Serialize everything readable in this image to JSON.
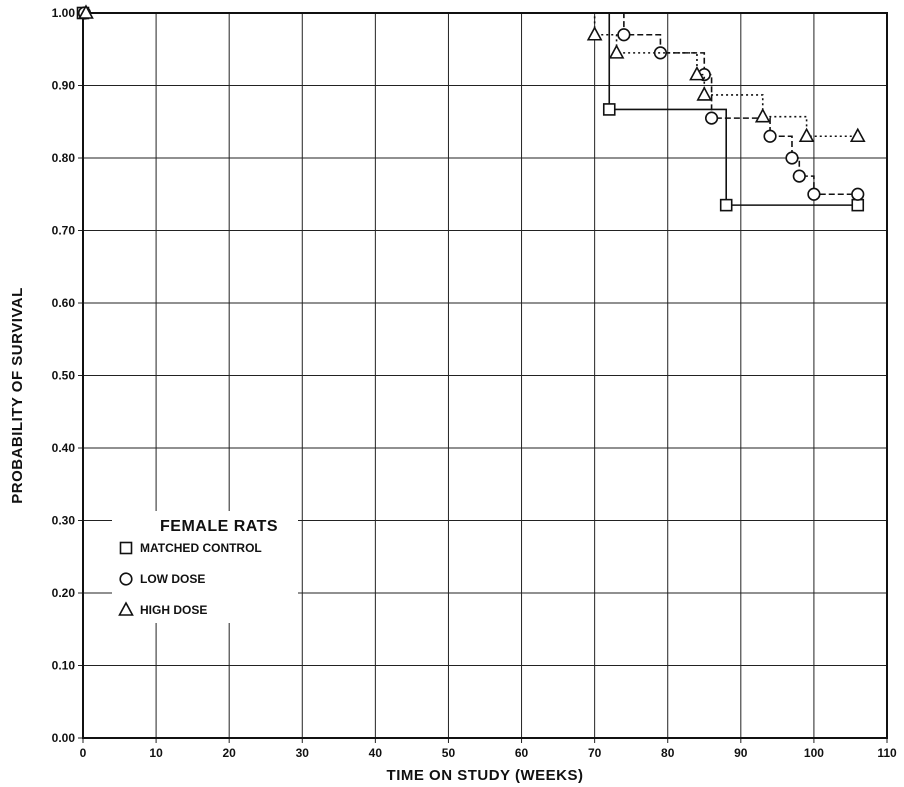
{
  "chart_data": {
    "type": "line",
    "subtype": "step (Kaplan-Meier survival)",
    "title": "",
    "xlabel": "TIME ON STUDY (WEEKS)",
    "ylabel": "PROBABILITY OF SURVIVAL",
    "xlim": [
      0,
      110
    ],
    "ylim": [
      0,
      1.0
    ],
    "x_ticks": [
      "0",
      "10",
      "20",
      "30",
      "40",
      "50",
      "60",
      "70",
      "80",
      "90",
      "100",
      "110"
    ],
    "y_ticks": [
      "0.00",
      "0.10",
      "0.20",
      "0.30",
      "0.40",
      "0.50",
      "0.60",
      "0.70",
      "0.80",
      "0.90",
      "1.00"
    ],
    "grid": true,
    "legend": {
      "title": "FEMALE RATS",
      "placement": "lower-left",
      "entries": [
        {
          "label": "MATCHED CONTROL",
          "marker": "square"
        },
        {
          "label": "LOW DOSE",
          "marker": "circle"
        },
        {
          "label": "HIGH DOSE",
          "marker": "triangle"
        }
      ]
    },
    "series": [
      {
        "name": "MATCHED CONTROL",
        "marker": "square",
        "line_style": "solid",
        "steps": [
          [
            0,
            1.0
          ],
          [
            72,
            0.867
          ],
          [
            88,
            0.735
          ],
          [
            106,
            0.735
          ]
        ],
        "markers": [
          [
            72,
            0.867
          ],
          [
            88,
            0.735
          ],
          [
            106,
            0.735
          ]
        ]
      },
      {
        "name": "LOW DOSE",
        "marker": "circle",
        "line_style": "dashed",
        "steps": [
          [
            0,
            1.0
          ],
          [
            74,
            0.97
          ],
          [
            79,
            0.945
          ],
          [
            85,
            0.915
          ],
          [
            86,
            0.855
          ],
          [
            94,
            0.83
          ],
          [
            97,
            0.8
          ],
          [
            98,
            0.775
          ],
          [
            100,
            0.75
          ],
          [
            106,
            0.75
          ]
        ],
        "markers": [
          [
            74,
            0.97
          ],
          [
            79,
            0.945
          ],
          [
            85,
            0.915
          ],
          [
            86,
            0.855
          ],
          [
            94,
            0.83
          ],
          [
            97,
            0.8
          ],
          [
            98,
            0.775
          ],
          [
            100,
            0.75
          ],
          [
            106,
            0.75
          ]
        ]
      },
      {
        "name": "HIGH DOSE",
        "marker": "triangle",
        "line_style": "dotted",
        "steps": [
          [
            0,
            1.0
          ],
          [
            70,
            0.97
          ],
          [
            73,
            0.945
          ],
          [
            84,
            0.915
          ],
          [
            85,
            0.887
          ],
          [
            93,
            0.857
          ],
          [
            99,
            0.83
          ],
          [
            106,
            0.83
          ]
        ],
        "markers": [
          [
            70,
            0.97
          ],
          [
            73,
            0.945
          ],
          [
            84,
            0.915
          ],
          [
            85,
            0.887
          ],
          [
            93,
            0.857
          ],
          [
            99,
            0.83
          ],
          [
            106,
            0.83
          ]
        ]
      }
    ]
  }
}
